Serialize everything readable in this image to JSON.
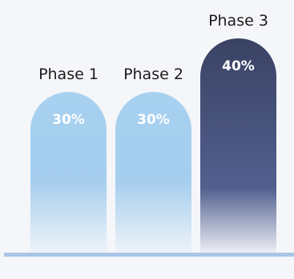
{
  "chart_data": {
    "type": "bar",
    "categories": [
      "Phase 1",
      "Phase 2",
      "Phase 3"
    ],
    "values": [
      30,
      30,
      40
    ],
    "value_labels": [
      "30%",
      "30%",
      "40%"
    ],
    "ylim": [
      0,
      40
    ],
    "grid": false,
    "legend": "none",
    "colors": {
      "light_top": "#a8d1f0",
      "light_mid": "#a5cdee",
      "light_bottom": "#eef3f9",
      "dark_top": "#3a4263",
      "dark_mid": "#52608f",
      "dark_bottom": "#eceef5",
      "baseline": "#a9c6e6",
      "background": "#f4f6f9"
    }
  }
}
